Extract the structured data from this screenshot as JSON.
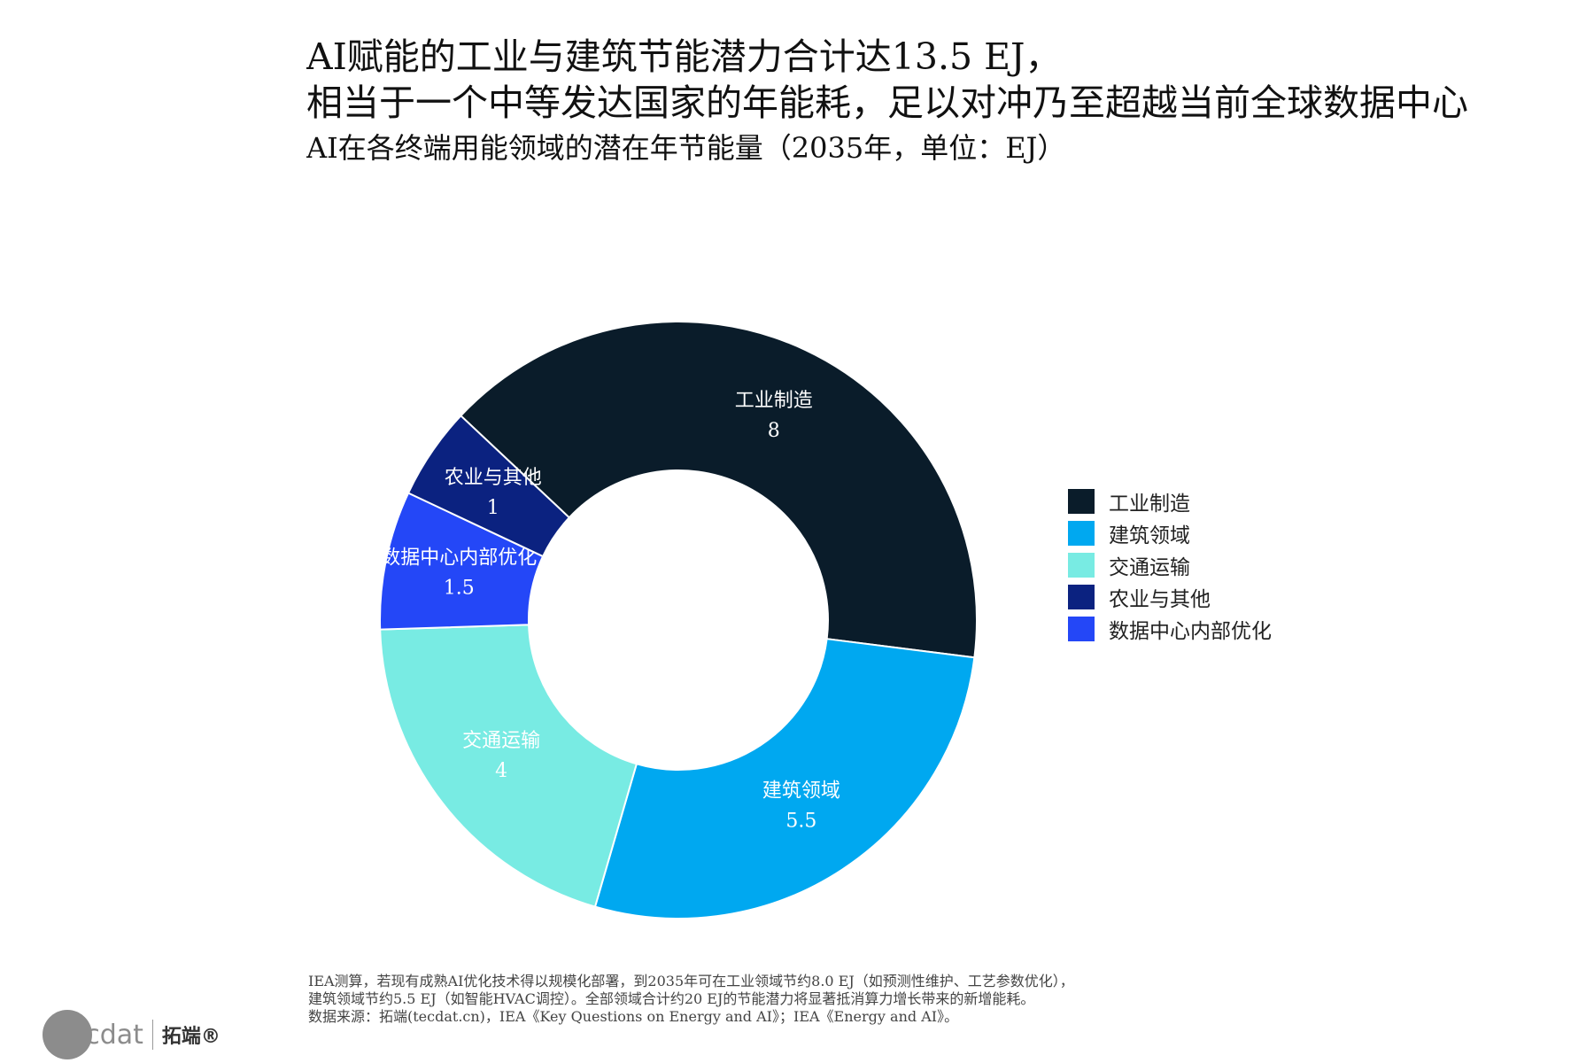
{
  "title": {
    "line1": "AI赋能的工业与建筑节能潜力合计达13.5 EJ，",
    "line2": "相当于一个中等发达国家的年能耗，足以对冲乃至超越当前全球数据中心",
    "subtitle": "AI在各终端用能领域的潜在年节能量（2035年，单位：EJ）"
  },
  "chart_data": {
    "type": "pie",
    "donut": true,
    "categories": [
      "工业制造",
      "建筑领域",
      "交通运输",
      "数据中心内部优化",
      "农业与其他"
    ],
    "values": [
      8,
      5.5,
      4,
      1.5,
      1
    ],
    "value_labels": [
      "8",
      "5.5",
      "4",
      "1.5",
      "1"
    ],
    "colors": [
      "#0a1c2a",
      "#00a8f0",
      "#78ebe3",
      "#2447f7",
      "#0b2280"
    ],
    "legend_order": [
      "工业制造",
      "建筑领域",
      "交通运输",
      "农业与其他",
      "数据中心内部优化"
    ],
    "legend_colors": [
      "#0a1c2a",
      "#00a8f0",
      "#78ebe3",
      "#0b2280",
      "#2447f7"
    ],
    "legend_position": "right"
  },
  "footnote": {
    "line1": "IEA测算，若现有成熟AI优化技术得以规模化部署，到2035年可在工业领域节约8.0 EJ（如预测性维护、工艺参数优化），",
    "line2": "建筑领域节约5.5 EJ（如智能HVAC调控）。全部领域合计约20 EJ的节能潜力将显著抵消算力增长带来的新增能耗。",
    "line3": "数据来源：拓端(tecdat.cn)，IEA《Key Questions on Energy and AI》；IEA《Energy and AI》。"
  },
  "logo": {
    "text": "tecdat",
    "cn": "拓端®"
  }
}
